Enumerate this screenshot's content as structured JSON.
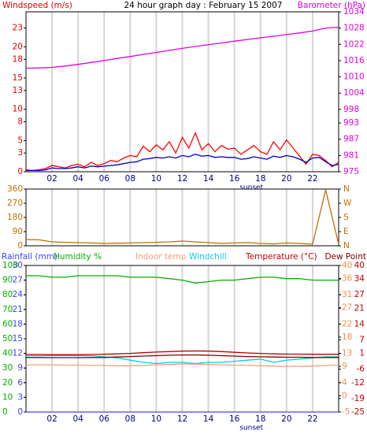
{
  "chart_data": [
    {
      "type": "line",
      "title": "24 hour graph day : February 15 2007",
      "ylabel": "Windspeed (m/s)",
      "y2label": "Barometer (hPa)",
      "xlim": [
        0,
        24
      ],
      "xticks": [
        {
          "value": 2,
          "label": "02"
        },
        {
          "value": 4,
          "label": "04"
        },
        {
          "value": 6,
          "label": "06"
        },
        {
          "value": 8,
          "label": "08"
        },
        {
          "value": 10,
          "label": "10"
        },
        {
          "value": 12,
          "label": "12"
        },
        {
          "value": 14,
          "label": "14"
        },
        {
          "value": 16,
          "label": "16"
        },
        {
          "value": 18,
          "label": "18"
        },
        {
          "value": 20,
          "label": "20"
        },
        {
          "value": 22,
          "label": "22"
        }
      ],
      "annotation": {
        "text": "sunset",
        "x": 17.3
      },
      "ylim": [
        0,
        25.6
      ],
      "yticks": [
        0,
        3,
        5,
        8,
        10,
        13,
        15,
        18,
        20,
        23
      ],
      "y2lim": [
        975,
        1034
      ],
      "y2ticks": [
        975,
        981,
        987,
        993,
        998,
        1004,
        1010,
        1016,
        1022,
        1028,
        1034
      ],
      "axis_colors": {
        "y": "#e00000",
        "y2": "#e000e0"
      },
      "grid": "x",
      "x": [
        0,
        0.5,
        1,
        1.5,
        2,
        2.5,
        3,
        3.5,
        4,
        4.5,
        5,
        5.5,
        6,
        6.5,
        7,
        7.5,
        8,
        8.5,
        9,
        9.5,
        10,
        10.5,
        11,
        11.5,
        12,
        12.5,
        13,
        13.5,
        14,
        14.5,
        15,
        15.5,
        16,
        16.5,
        17,
        17.5,
        18,
        18.5,
        19,
        19.5,
        20,
        20.5,
        21,
        21.5,
        22,
        22.5,
        23,
        23.5,
        24
      ],
      "series": [
        {
          "color": "#e000e0",
          "axis": "y2",
          "x": [
            0,
            1,
            2,
            3,
            4,
            5,
            6,
            7,
            8,
            9,
            10,
            11,
            12,
            13,
            14,
            15,
            16,
            17,
            18,
            19,
            20,
            21,
            22,
            23,
            24
          ],
          "values": [
            1013.2,
            1013.3,
            1013.5,
            1014,
            1014.6,
            1015.3,
            1016,
            1016.8,
            1017.5,
            1018.3,
            1019,
            1019.8,
            1020.5,
            1021.2,
            1021.9,
            1022.5,
            1023.2,
            1023.8,
            1024.4,
            1025,
            1025.6,
            1026.2,
            1026.9,
            1028,
            1028.3
          ]
        },
        {
          "color": "#ff0000",
          "axis": "y",
          "values": [
            0.3,
            0.2,
            0.3,
            0.5,
            1,
            0.8,
            0.6,
            1,
            1.2,
            0.8,
            1.5,
            1,
            1.3,
            1.8,
            1.6,
            2.2,
            2.6,
            2.4,
            4.1,
            3.2,
            4.3,
            3.5,
            4.8,
            3,
            5.5,
            3.8,
            6.2,
            3.5,
            4.5,
            3.2,
            4.2,
            3.6,
            3.8,
            2.8,
            3.5,
            4.2,
            3.2,
            2.8,
            4.8,
            3.5,
            5.1,
            3.8,
            2.5,
            1.2,
            2.8,
            2.6,
            1.8,
            0.8,
            1.5
          ]
        },
        {
          "color": "#0000c0",
          "axis": "y",
          "values": [
            0.2,
            0.2,
            0.2,
            0.3,
            0.6,
            0.5,
            0.5,
            0.6,
            0.8,
            0.6,
            0.9,
            0.8,
            0.9,
            1,
            1.1,
            1.3,
            1.5,
            1.6,
            2,
            2.1,
            2.3,
            2.2,
            2.4,
            2.2,
            2.6,
            2.4,
            2.8,
            2.5,
            2.6,
            2.3,
            2.4,
            2.3,
            2.3,
            2,
            2.1,
            2.4,
            2.2,
            2,
            2.5,
            2.3,
            2.6,
            2.4,
            2,
            1.5,
            2.2,
            2.3,
            1.6,
            1,
            1.2
          ]
        }
      ]
    },
    {
      "type": "line",
      "xlim": [
        0,
        24
      ],
      "xticks": [
        2,
        4,
        6,
        8,
        10,
        12,
        14,
        16,
        18,
        20,
        22
      ],
      "ylim": [
        0,
        360
      ],
      "yticks": [
        0,
        90,
        180,
        270,
        360
      ],
      "y2lim": [
        0,
        360
      ],
      "y2ticks": [
        {
          "value": 0,
          "label": "N"
        },
        {
          "value": 90,
          "label": "E"
        },
        {
          "value": 180,
          "label": "S"
        },
        {
          "value": 270,
          "label": "W"
        },
        {
          "value": 360,
          "label": "N"
        }
      ],
      "axis_colors": {
        "y": "#c07000",
        "y2": "#c07000"
      },
      "grid": "x",
      "x": [
        0,
        1,
        2,
        3,
        4,
        5,
        6,
        7,
        8,
        9,
        10,
        11,
        12,
        13,
        14,
        15,
        16,
        17,
        18,
        19,
        20,
        21,
        22,
        23,
        24
      ],
      "series": [
        {
          "color": "#c07000",
          "axis": "y",
          "values": [
            40,
            38,
            25,
            22,
            20,
            18,
            15,
            16,
            18,
            20,
            22,
            25,
            30,
            25,
            20,
            15,
            18,
            20,
            15,
            12,
            18,
            15,
            10,
            355,
            10
          ]
        }
      ]
    },
    {
      "type": "line",
      "xlim": [
        0,
        24
      ],
      "xticks": [
        {
          "value": 2,
          "label": "02"
        },
        {
          "value": 4,
          "label": "04"
        },
        {
          "value": 6,
          "label": "06"
        },
        {
          "value": 8,
          "label": "08"
        },
        {
          "value": 10,
          "label": "10"
        },
        {
          "value": 12,
          "label": "12"
        },
        {
          "value": 14,
          "label": "14"
        },
        {
          "value": 16,
          "label": "16"
        },
        {
          "value": 18,
          "label": "18"
        },
        {
          "value": 20,
          "label": "20"
        },
        {
          "value": 22,
          "label": "22"
        }
      ],
      "annotation": {
        "text": "sunset",
        "x": 17.3
      },
      "ylim": [
        0,
        30
      ],
      "yticks": [
        0,
        3,
        6,
        9,
        12,
        15,
        18,
        21,
        24,
        27,
        30
      ],
      "y3lim": [
        0,
        100
      ],
      "y3ticks": [
        0,
        10,
        20,
        30,
        40,
        50,
        60,
        70,
        80,
        90,
        100
      ],
      "y2lim": [
        -25,
        40
      ],
      "y2ticks": [
        -25,
        -19,
        -12,
        -6,
        1,
        7,
        14,
        21,
        27,
        34,
        40
      ],
      "y4lim": [
        -5,
        40
      ],
      "y4ticks": [
        -5,
        0,
        4,
        9,
        13,
        18,
        22,
        27,
        31,
        36,
        40
      ],
      "axis_colors": {
        "y": "#4040ff",
        "y3": "#00b000",
        "y2": "#c00000",
        "y4": "#f09050"
      },
      "grid": "x",
      "x": [
        0,
        1,
        2,
        3,
        4,
        5,
        6,
        7,
        8,
        9,
        10,
        11,
        12,
        13,
        14,
        15,
        16,
        17,
        18,
        19,
        20,
        21,
        22,
        23,
        24
      ],
      "series": [
        {
          "name": "Rainfall (mm)",
          "color": "#4040ff",
          "axis": "y",
          "values": [
            0,
            0,
            0,
            0,
            0,
            0,
            0,
            0,
            0,
            0,
            0,
            0,
            0,
            0,
            0,
            0,
            0,
            0,
            0,
            0,
            0,
            0,
            0,
            0,
            0
          ]
        },
        {
          "name": "Humidity %",
          "color": "#00b000",
          "axis": "y3",
          "values": [
            93,
            93,
            92,
            92,
            93,
            93,
            93,
            93,
            92,
            92,
            92,
            91,
            90,
            88,
            89,
            90,
            90,
            91,
            92,
            92,
            91,
            91,
            90,
            90,
            90
          ]
        },
        {
          "name": "Indoor temp",
          "color": "#f0a080",
          "axis": "y4",
          "values": [
            9.5,
            9.5,
            9.5,
            9.4,
            9.4,
            9.3,
            9.3,
            9.2,
            9.2,
            9.3,
            9.5,
            9.6,
            9.8,
            9.7,
            9.6,
            9.5,
            9.4,
            9.3,
            9.2,
            9.1,
            9,
            9,
            9.1,
            9.3,
            9.4
          ]
        },
        {
          "name": "Windchill",
          "color": "#00d0e0",
          "axis": "y2",
          "values": [
            0,
            0,
            0,
            0,
            0,
            0,
            -0.5,
            -1,
            -2,
            -3,
            -3.5,
            -3,
            -3,
            -3.5,
            -3,
            -3,
            -2.5,
            -2,
            -1.5,
            -3,
            -2,
            -1.5,
            -1,
            -0.5,
            -0.5
          ]
        },
        {
          "name": "Temperature (°C)",
          "color": "#c00000",
          "axis": "y2",
          "values": [
            0.5,
            0.5,
            0.4,
            0.4,
            0.4,
            0.5,
            0.6,
            0.8,
            1,
            1.3,
            1.6,
            1.8,
            2,
            2.1,
            2,
            1.8,
            1.5,
            1.2,
            1,
            0.8,
            0.7,
            0.7,
            0.6,
            0.6,
            0.6
          ]
        },
        {
          "name": "Dew Point",
          "color": "#800000",
          "axis": "y2",
          "values": [
            -0.8,
            -0.8,
            -0.9,
            -0.9,
            -0.9,
            -0.8,
            -0.8,
            -0.6,
            -0.4,
            -0.2,
            0,
            0.2,
            0.3,
            0.3,
            0.2,
            0,
            -0.2,
            -0.4,
            -0.5,
            -0.6,
            -0.7,
            -0.7,
            -0.8,
            -0.8,
            -0.8
          ]
        }
      ]
    }
  ]
}
